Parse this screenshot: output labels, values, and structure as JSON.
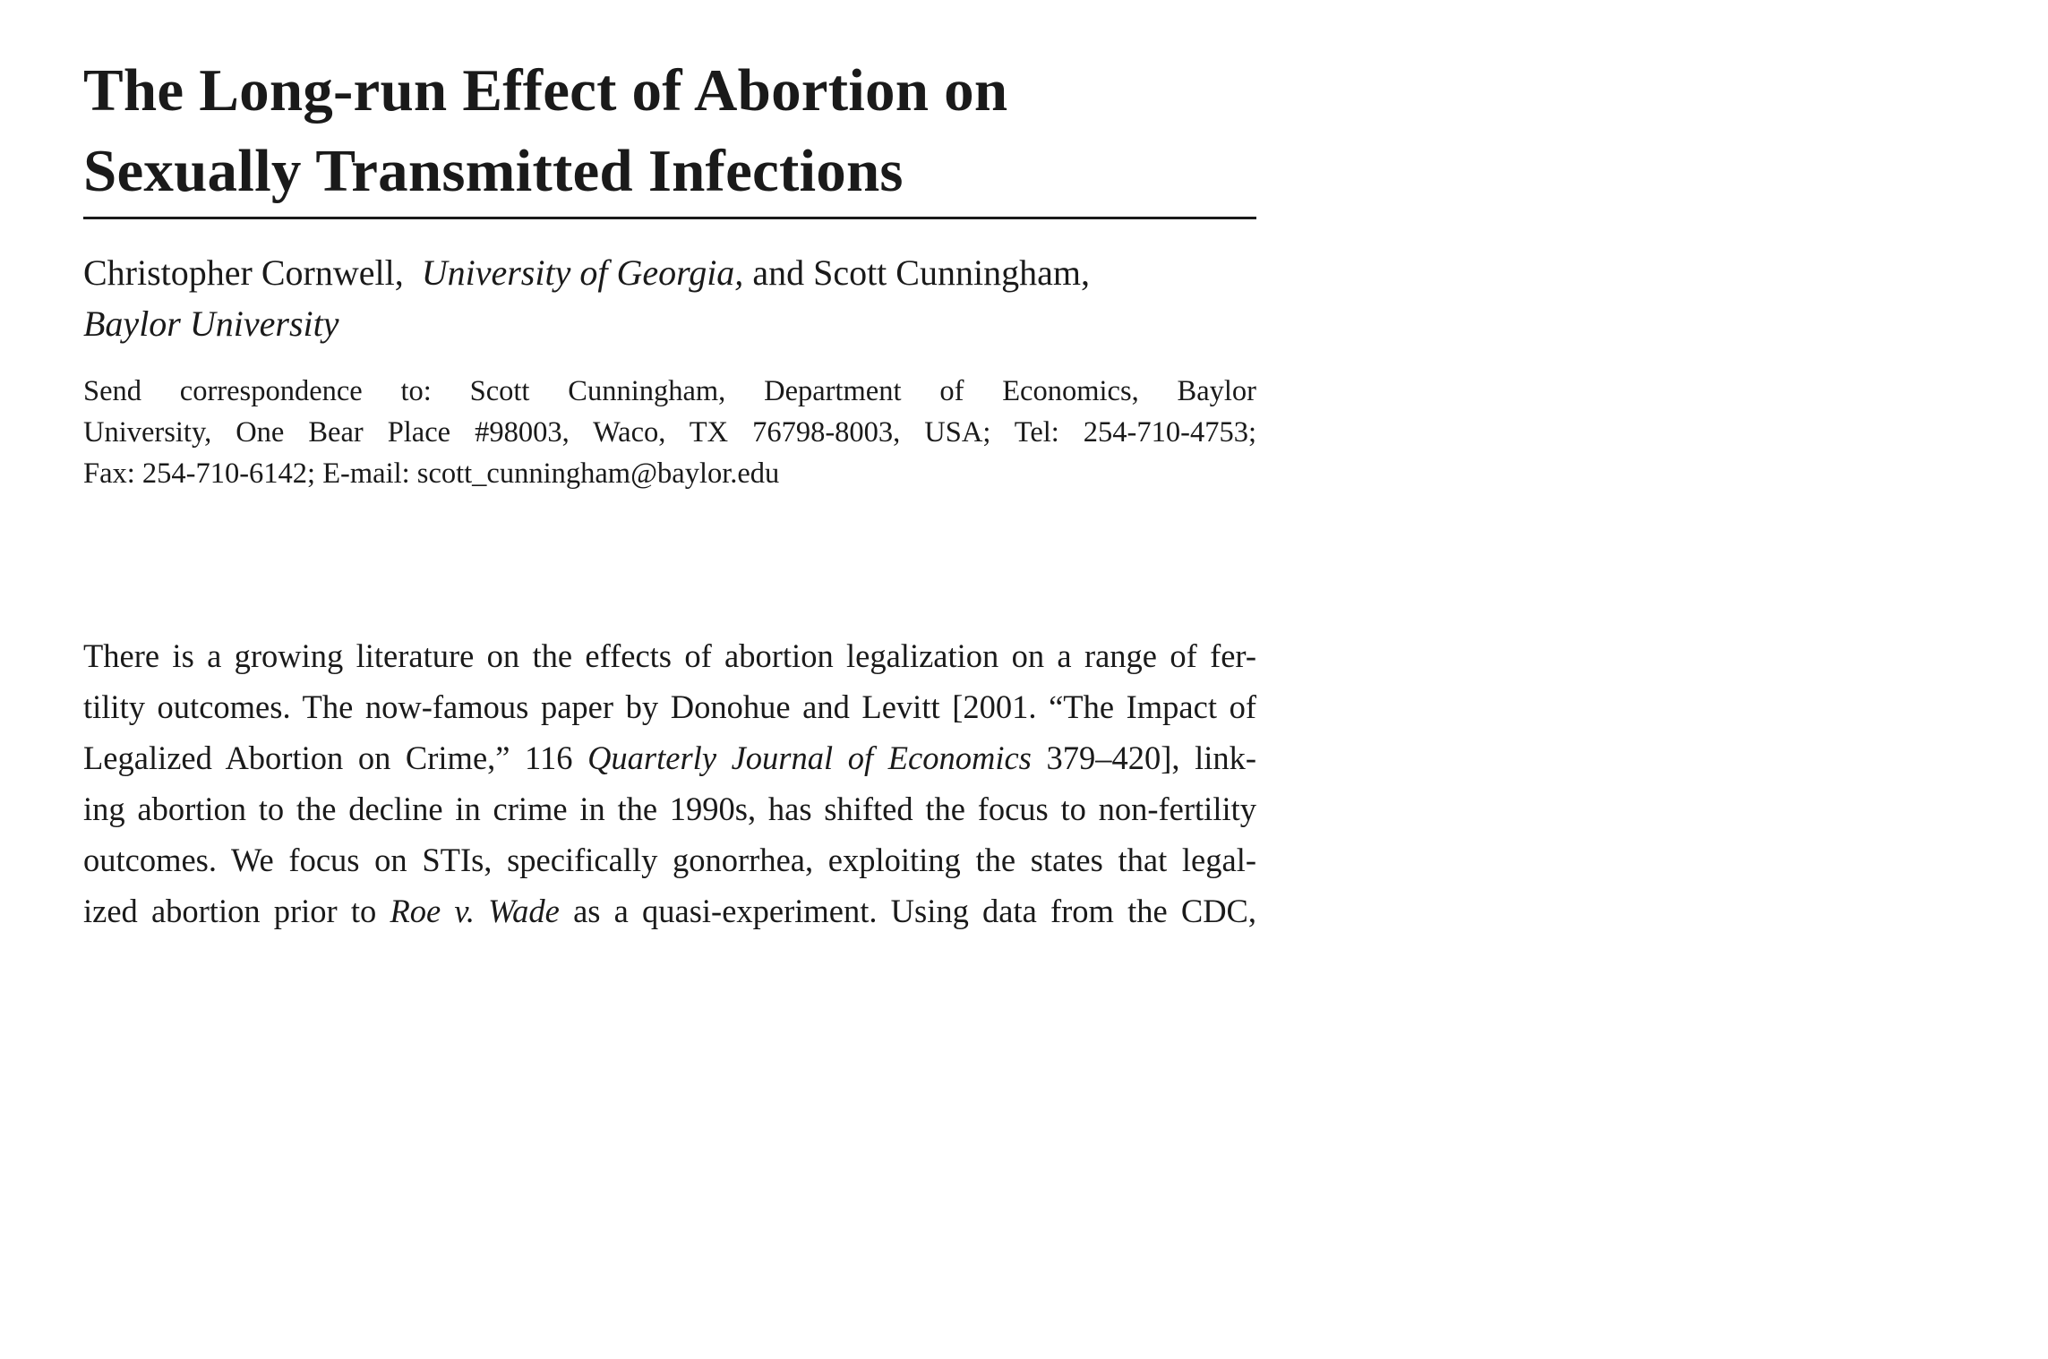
{
  "title": {
    "line1": "The Long-run Effect of Abortion on",
    "line2": "Sexually Transmitted Infections"
  },
  "authors": {
    "author1": "Christopher Cornwell,",
    "affiliation1": "University of Georgia,",
    "connector": "and Scott Cunningham,",
    "affiliation2": "Baylor University"
  },
  "correspondence": {
    "line1": "Send correspondence to: Scott Cunningham, Department of Economics, Baylor",
    "line2": "University, One Bear Place #98003, Waco, TX 76798-8003, USA; Tel: 254-710-4753;",
    "line3": "Fax: 254-710-6142; E-mail: scott_cunningham@baylor.edu"
  },
  "abstract": {
    "line1": "There is a growing literature on the effects of abortion legalization on a range of fer-",
    "line2": "tility outcomes. The now-famous paper by Donohue and Levitt [2001. “The Impact of",
    "line3_a": "Legalized Abortion on Crime,” 116",
    "line3_journal": "Quarterly Journal of Economics",
    "line3_b": "379–420], link-",
    "line4": "ing abortion to the decline in crime in the 1990s, has shifted the focus to non-fertility",
    "line5": "outcomes. We focus on STIs, specifically gonorrhea, exploiting the states that legal-",
    "line6_a": "ized abortion prior to",
    "line6_case": "Roe v. Wade",
    "line6_b": "as a quasi-experiment. Using data from the CDC,"
  }
}
